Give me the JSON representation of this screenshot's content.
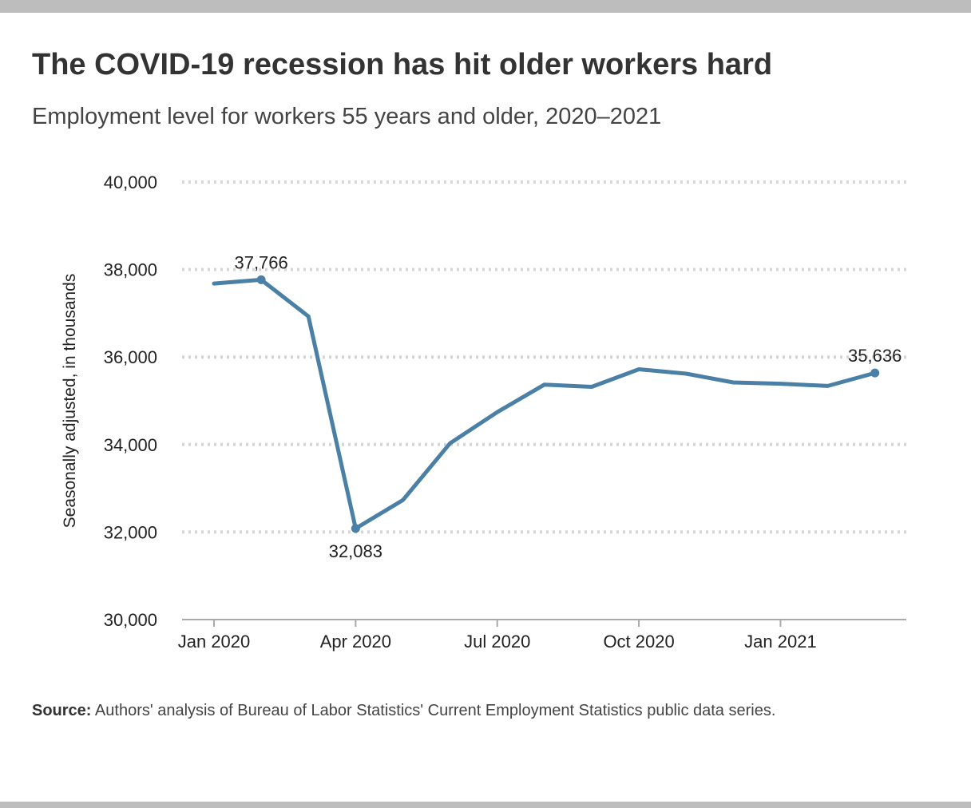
{
  "title": "The COVID-19 recession has hit older workers hard",
  "subtitle": "Employment level for workers 55 years and older, 2020–2021",
  "source": {
    "label": "Source:",
    "text": " Authors' analysis of Bureau of Labor Statistics' Current Employment Statistics public data series."
  },
  "colors": {
    "line": "#4a80a6",
    "grid": "#d6d6d6",
    "axis": "#aaaaaa",
    "frame": "#bdbdbd"
  },
  "chart_data": {
    "type": "line",
    "title": "The COVID-19 recession has hit older workers hard",
    "subtitle": "Employment level for workers 55 years and older, 2020–2021",
    "ylabel": "Seasonally adjusted, in thousands",
    "xlabel": "",
    "ylim": [
      30000,
      40000
    ],
    "yticks": [
      30000,
      32000,
      34000,
      36000,
      38000,
      40000
    ],
    "ytick_labels": [
      "30,000",
      "32,000",
      "34,000",
      "36,000",
      "38,000",
      "40,000"
    ],
    "xticks": [
      "2020-01",
      "2020-04",
      "2020-07",
      "2020-10",
      "2021-01"
    ],
    "xtick_labels": [
      "Jan 2020",
      "Apr 2020",
      "Jul 2020",
      "Oct 2020",
      "Jan 2021"
    ],
    "grid": "horizontal dotted",
    "x": [
      "2020-01",
      "2020-02",
      "2020-03",
      "2020-04",
      "2020-05",
      "2020-06",
      "2020-07",
      "2020-08",
      "2020-09",
      "2020-10",
      "2020-11",
      "2020-12",
      "2021-01",
      "2021-02",
      "2021-03"
    ],
    "series": [
      {
        "values": [
          37680,
          37766,
          36930,
          32083,
          32730,
          34030,
          34740,
          35370,
          35320,
          35720,
          35620,
          35420,
          35390,
          35340,
          35636
        ]
      }
    ],
    "annotations": [
      {
        "x": "2020-02",
        "value": 37766,
        "label": "37,766",
        "position": "above"
      },
      {
        "x": "2020-04",
        "value": 32083,
        "label": "32,083",
        "position": "below"
      },
      {
        "x": "2021-03",
        "value": 35636,
        "label": "35,636",
        "position": "above"
      }
    ]
  }
}
